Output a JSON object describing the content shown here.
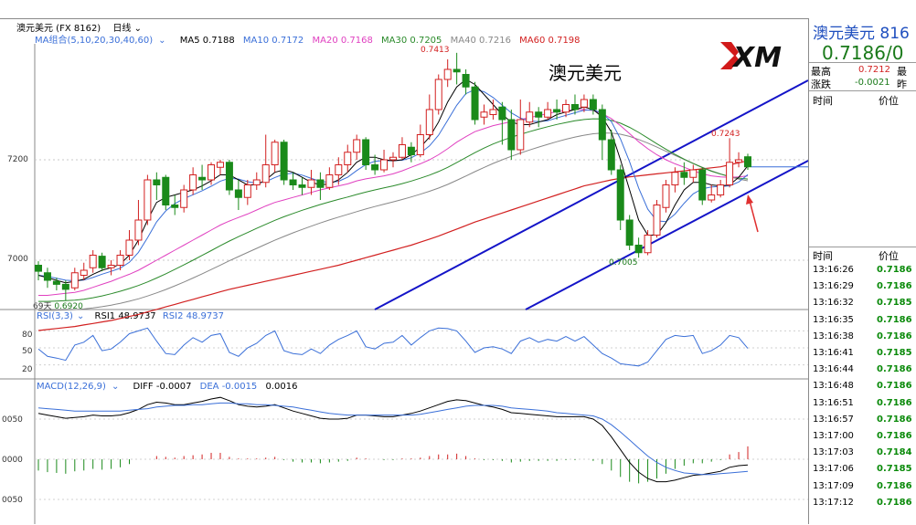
{
  "toolbar": {
    "symbol_label": "澳元美元 (FX 8162)",
    "period_label": "日线"
  },
  "ma_legend": {
    "group": "MA组合(5,10,20,30,40,60)",
    "items": [
      {
        "label": "MA5 0.7188",
        "color": "#000000"
      },
      {
        "label": "MA10 0.7172",
        "color": "#3a6fd8"
      },
      {
        "label": "MA20 0.7168",
        "color": "#e040c0"
      },
      {
        "label": "MA30 0.7205",
        "color": "#2a8a2a"
      },
      {
        "label": "MA40 0.7216",
        "color": "#888888"
      },
      {
        "label": "MA60 0.7198",
        "color": "#d22020"
      }
    ]
  },
  "chart_title": "澳元美元",
  "logo_text": "XM",
  "annotations": {
    "high": "0.7413",
    "low": "0.7005",
    "recent_high": "0.7243",
    "left_low": "0.6920",
    "left_low_prefix": "69天"
  },
  "price_axis": [
    "7200",
    "7000"
  ],
  "rsi_legend": {
    "group": "RSI(3,3)",
    "rsi1": "RSI1 48.9737",
    "rsi2": "RSI2 48.9737",
    "ticks": [
      "80",
      "50",
      "20"
    ]
  },
  "macd_legend": {
    "group": "MACD(12,26,9)",
    "diff": "DIFF -0.0007",
    "dea": "DEA -0.0015",
    "macd": "0.0016",
    "ticks": [
      "0050",
      "0000",
      "0050"
    ]
  },
  "quote": {
    "title": "澳元美元  816",
    "price": "0.7186/0",
    "high_label": "最高",
    "high_value": "0.7212",
    "change_label": "涨跌",
    "change_value": "-0.0021",
    "right_label_1": "最",
    "right_label_2": "昨",
    "col_time": "时间",
    "col_price": "价位",
    "ticks": [
      {
        "time": "13:16:26",
        "price": "0.7186"
      },
      {
        "time": "13:16:29",
        "price": "0.7186"
      },
      {
        "time": "13:16:32",
        "price": "0.7185"
      },
      {
        "time": "13:16:35",
        "price": "0.7186"
      },
      {
        "time": "13:16:38",
        "price": "0.7186"
      },
      {
        "time": "13:16:41",
        "price": "0.7185"
      },
      {
        "time": "13:16:44",
        "price": "0.7186"
      },
      {
        "time": "13:16:48",
        "price": "0.7186"
      },
      {
        "time": "13:16:51",
        "price": "0.7186"
      },
      {
        "time": "13:16:57",
        "price": "0.7186"
      },
      {
        "time": "13:17:00",
        "price": "0.7186"
      },
      {
        "time": "13:17:03",
        "price": "0.7184"
      },
      {
        "time": "13:17:06",
        "price": "0.7185"
      },
      {
        "time": "13:17:09",
        "price": "0.7186"
      },
      {
        "time": "13:17:12",
        "price": "0.7186"
      }
    ]
  },
  "chart_data": {
    "type": "candlestick",
    "title": "澳元美元",
    "ylim": [
      0.692,
      0.7413
    ],
    "candles": [
      {
        "o": 0.699,
        "c": 0.6978,
        "h": 0.6998,
        "l": 0.696
      },
      {
        "o": 0.6975,
        "c": 0.696,
        "h": 0.6985,
        "l": 0.6945
      },
      {
        "o": 0.6958,
        "c": 0.6952,
        "h": 0.6965,
        "l": 0.694
      },
      {
        "o": 0.6952,
        "c": 0.6942,
        "h": 0.696,
        "l": 0.692
      },
      {
        "o": 0.6945,
        "c": 0.6975,
        "h": 0.6985,
        "l": 0.694
      },
      {
        "o": 0.697,
        "c": 0.698,
        "h": 0.6995,
        "l": 0.696
      },
      {
        "o": 0.6985,
        "c": 0.701,
        "h": 0.702,
        "l": 0.6975
      },
      {
        "o": 0.7008,
        "c": 0.6985,
        "h": 0.7015,
        "l": 0.6978
      },
      {
        "o": 0.6985,
        "c": 0.699,
        "h": 0.7,
        "l": 0.697
      },
      {
        "o": 0.699,
        "c": 0.701,
        "h": 0.702,
        "l": 0.698
      },
      {
        "o": 0.701,
        "c": 0.704,
        "h": 0.706,
        "l": 0.7
      },
      {
        "o": 0.704,
        "c": 0.708,
        "h": 0.712,
        "l": 0.703
      },
      {
        "o": 0.708,
        "c": 0.716,
        "h": 0.717,
        "l": 0.707
      },
      {
        "o": 0.716,
        "c": 0.715,
        "h": 0.7175,
        "l": 0.712
      },
      {
        "o": 0.7165,
        "c": 0.711,
        "h": 0.717,
        "l": 0.71
      },
      {
        "o": 0.711,
        "c": 0.7105,
        "h": 0.713,
        "l": 0.709
      },
      {
        "o": 0.7105,
        "c": 0.714,
        "h": 0.715,
        "l": 0.7095
      },
      {
        "o": 0.714,
        "c": 0.717,
        "h": 0.7185,
        "l": 0.713
      },
      {
        "o": 0.7165,
        "c": 0.716,
        "h": 0.719,
        "l": 0.714
      },
      {
        "o": 0.716,
        "c": 0.719,
        "h": 0.7195,
        "l": 0.715
      },
      {
        "o": 0.7185,
        "c": 0.7195,
        "h": 0.72,
        "l": 0.717
      },
      {
        "o": 0.7195,
        "c": 0.714,
        "h": 0.72,
        "l": 0.713
      },
      {
        "o": 0.714,
        "c": 0.7125,
        "h": 0.716,
        "l": 0.71
      },
      {
        "o": 0.7125,
        "c": 0.715,
        "h": 0.716,
        "l": 0.711
      },
      {
        "o": 0.715,
        "c": 0.716,
        "h": 0.7175,
        "l": 0.714
      },
      {
        "o": 0.7155,
        "c": 0.719,
        "h": 0.725,
        "l": 0.7145
      },
      {
        "o": 0.719,
        "c": 0.7235,
        "h": 0.724,
        "l": 0.7175
      },
      {
        "o": 0.7235,
        "c": 0.716,
        "h": 0.724,
        "l": 0.715
      },
      {
        "o": 0.716,
        "c": 0.715,
        "h": 0.7175,
        "l": 0.714
      },
      {
        "o": 0.715,
        "c": 0.7145,
        "h": 0.7165,
        "l": 0.713
      },
      {
        "o": 0.7145,
        "c": 0.716,
        "h": 0.718,
        "l": 0.713
      },
      {
        "o": 0.716,
        "c": 0.7145,
        "h": 0.7175,
        "l": 0.712
      },
      {
        "o": 0.7145,
        "c": 0.717,
        "h": 0.7185,
        "l": 0.714
      },
      {
        "o": 0.717,
        "c": 0.719,
        "h": 0.7205,
        "l": 0.715
      },
      {
        "o": 0.719,
        "c": 0.7215,
        "h": 0.723,
        "l": 0.7175
      },
      {
        "o": 0.7215,
        "c": 0.724,
        "h": 0.725,
        "l": 0.72
      },
      {
        "o": 0.724,
        "c": 0.719,
        "h": 0.7245,
        "l": 0.718
      },
      {
        "o": 0.719,
        "c": 0.718,
        "h": 0.721,
        "l": 0.717
      },
      {
        "o": 0.718,
        "c": 0.72,
        "h": 0.722,
        "l": 0.7175
      },
      {
        "o": 0.72,
        "c": 0.7205,
        "h": 0.7215,
        "l": 0.7185
      },
      {
        "o": 0.7205,
        "c": 0.723,
        "h": 0.7245,
        "l": 0.72
      },
      {
        "o": 0.7225,
        "c": 0.721,
        "h": 0.7235,
        "l": 0.7195
      },
      {
        "o": 0.721,
        "c": 0.725,
        "h": 0.727,
        "l": 0.7205
      },
      {
        "o": 0.725,
        "c": 0.73,
        "h": 0.733,
        "l": 0.724
      },
      {
        "o": 0.73,
        "c": 0.736,
        "h": 0.737,
        "l": 0.729
      },
      {
        "o": 0.736,
        "c": 0.738,
        "h": 0.74,
        "l": 0.7345
      },
      {
        "o": 0.738,
        "c": 0.7375,
        "h": 0.7413,
        "l": 0.735
      },
      {
        "o": 0.737,
        "c": 0.7345,
        "h": 0.738,
        "l": 0.733
      },
      {
        "o": 0.7345,
        "c": 0.728,
        "h": 0.7355,
        "l": 0.727
      },
      {
        "o": 0.7285,
        "c": 0.7295,
        "h": 0.731,
        "l": 0.727
      },
      {
        "o": 0.729,
        "c": 0.73,
        "h": 0.732,
        "l": 0.728
      },
      {
        "o": 0.7305,
        "c": 0.728,
        "h": 0.7315,
        "l": 0.723
      },
      {
        "o": 0.728,
        "c": 0.722,
        "h": 0.73,
        "l": 0.72
      },
      {
        "o": 0.722,
        "c": 0.728,
        "h": 0.732,
        "l": 0.721
      },
      {
        "o": 0.7275,
        "c": 0.7295,
        "h": 0.7315,
        "l": 0.7265
      },
      {
        "o": 0.7295,
        "c": 0.7285,
        "h": 0.7305,
        "l": 0.7265
      },
      {
        "o": 0.7285,
        "c": 0.73,
        "h": 0.7315,
        "l": 0.728
      },
      {
        "o": 0.73,
        "c": 0.7295,
        "h": 0.732,
        "l": 0.728
      },
      {
        "o": 0.7295,
        "c": 0.731,
        "h": 0.732,
        "l": 0.7285
      },
      {
        "o": 0.731,
        "c": 0.73,
        "h": 0.733,
        "l": 0.729
      },
      {
        "o": 0.7305,
        "c": 0.732,
        "h": 0.733,
        "l": 0.7295
      },
      {
        "o": 0.732,
        "c": 0.73,
        "h": 0.733,
        "l": 0.729
      },
      {
        "o": 0.73,
        "c": 0.724,
        "h": 0.731,
        "l": 0.72
      },
      {
        "o": 0.724,
        "c": 0.718,
        "h": 0.726,
        "l": 0.717
      },
      {
        "o": 0.718,
        "c": 0.708,
        "h": 0.719,
        "l": 0.706
      },
      {
        "o": 0.708,
        "c": 0.703,
        "h": 0.709,
        "l": 0.702
      },
      {
        "o": 0.703,
        "c": 0.7015,
        "h": 0.7045,
        "l": 0.7005
      },
      {
        "o": 0.7015,
        "c": 0.705,
        "h": 0.706,
        "l": 0.701
      },
      {
        "o": 0.705,
        "c": 0.711,
        "h": 0.712,
        "l": 0.7045
      },
      {
        "o": 0.7105,
        "c": 0.715,
        "h": 0.716,
        "l": 0.7095
      },
      {
        "o": 0.715,
        "c": 0.7175,
        "h": 0.7185,
        "l": 0.7135
      },
      {
        "o": 0.7175,
        "c": 0.7165,
        "h": 0.7195,
        "l": 0.715
      },
      {
        "o": 0.7165,
        "c": 0.718,
        "h": 0.719,
        "l": 0.7155
      },
      {
        "o": 0.718,
        "c": 0.712,
        "h": 0.7185,
        "l": 0.711
      },
      {
        "o": 0.712,
        "c": 0.713,
        "h": 0.715,
        "l": 0.7115
      },
      {
        "o": 0.713,
        "c": 0.715,
        "h": 0.716,
        "l": 0.7125
      },
      {
        "o": 0.715,
        "c": 0.7195,
        "h": 0.7243,
        "l": 0.7145
      },
      {
        "o": 0.7195,
        "c": 0.72,
        "h": 0.7215,
        "l": 0.7185
      },
      {
        "o": 0.7206,
        "c": 0.7186,
        "h": 0.7212,
        "l": 0.718
      }
    ],
    "ma5": [
      0.697,
      0.6965,
      0.696,
      0.6955,
      0.6958,
      0.6962,
      0.6972,
      0.698,
      0.6985,
      0.6992,
      0.701,
      0.704,
      0.708,
      0.7115,
      0.7125,
      0.713,
      0.7135,
      0.714,
      0.7148,
      0.7158,
      0.717,
      0.717,
      0.716,
      0.715,
      0.715,
      0.716,
      0.7175,
      0.718,
      0.7175,
      0.7165,
      0.7155,
      0.715,
      0.7152,
      0.716,
      0.7175,
      0.7195,
      0.7205,
      0.7205,
      0.72,
      0.7198,
      0.72,
      0.721,
      0.7225,
      0.7245,
      0.7275,
      0.7315,
      0.7345,
      0.736,
      0.735,
      0.733,
      0.731,
      0.729,
      0.7275,
      0.727,
      0.727,
      0.7275,
      0.728,
      0.729,
      0.7295,
      0.73,
      0.7305,
      0.73,
      0.7285,
      0.7255,
      0.72,
      0.714,
      0.708,
      0.705,
      0.705,
      0.7075,
      0.711,
      0.714,
      0.7155,
      0.7155,
      0.715,
      0.7148,
      0.715,
      0.7165,
      0.7188
    ],
    "ma20": [
      0.693,
      0.693,
      0.6932,
      0.6934,
      0.6936,
      0.694,
      0.6946,
      0.6952,
      0.6958,
      0.6965,
      0.6972,
      0.698,
      0.699,
      0.7,
      0.701,
      0.702,
      0.703,
      0.704,
      0.705,
      0.706,
      0.707,
      0.7078,
      0.7085,
      0.7092,
      0.71,
      0.7108,
      0.7115,
      0.712,
      0.7125,
      0.713,
      0.7135,
      0.714,
      0.7144,
      0.7148,
      0.7152,
      0.7158,
      0.7162,
      0.7165,
      0.7168,
      0.7172,
      0.7178,
      0.7185,
      0.7192,
      0.72,
      0.721,
      0.7222,
      0.7235,
      0.7246,
      0.7256,
      0.7262,
      0.7268,
      0.7272,
      0.7276,
      0.728,
      0.7284,
      0.7288,
      0.7292,
      0.7296,
      0.7298,
      0.73,
      0.73,
      0.7298,
      0.7292,
      0.7282,
      0.7268,
      0.7252,
      0.7236,
      0.7222,
      0.721,
      0.72,
      0.7192,
      0.7185,
      0.7178,
      0.7172,
      0.7168,
      0.7166,
      0.7165,
      0.7166,
      0.7168
    ],
    "ma60": [
      0.686,
      0.6862,
      0.6864,
      0.6866,
      0.6868,
      0.6871,
      0.6874,
      0.6877,
      0.688,
      0.6884,
      0.6888,
      0.6892,
      0.6897,
      0.6902,
      0.6907,
      0.6912,
      0.6917,
      0.6922,
      0.6927,
      0.6932,
      0.6937,
      0.6942,
      0.6946,
      0.695,
      0.6954,
      0.6958,
      0.6962,
      0.6966,
      0.697,
      0.6974,
      0.6978,
      0.6982,
      0.6986,
      0.699,
      0.6995,
      0.7,
      0.7005,
      0.701,
      0.7015,
      0.702,
      0.7025,
      0.703,
      0.7036,
      0.7042,
      0.7048,
      0.7055,
      0.7062,
      0.7069,
      0.7076,
      0.7082,
      0.7088,
      0.7094,
      0.71,
      0.7106,
      0.7112,
      0.7118,
      0.7124,
      0.713,
      0.7136,
      0.7142,
      0.7148,
      0.7152,
      0.7156,
      0.716,
      0.7163,
      0.7166,
      0.7168,
      0.717,
      0.7172,
      0.7174,
      0.7176,
      0.7178,
      0.718,
      0.7182,
      0.7184,
      0.7186,
      0.719,
      0.7194,
      0.7198
    ],
    "rsi": [
      48,
      35,
      32,
      28,
      55,
      60,
      72,
      45,
      48,
      60,
      75,
      80,
      85,
      62,
      40,
      38,
      55,
      68,
      60,
      72,
      75,
      42,
      35,
      50,
      58,
      72,
      80,
      45,
      40,
      38,
      48,
      40,
      55,
      65,
      72,
      80,
      52,
      48,
      58,
      60,
      72,
      55,
      68,
      80,
      85,
      84,
      80,
      62,
      42,
      50,
      52,
      48,
      40,
      62,
      68,
      60,
      65,
      62,
      70,
      62,
      70,
      55,
      40,
      32,
      22,
      20,
      18,
      25,
      45,
      65,
      72,
      70,
      72,
      40,
      45,
      55,
      72,
      68,
      49
    ],
    "macd_hist": [
      -0.0014,
      -0.0016,
      -0.0017,
      -0.0018,
      -0.0015,
      -0.0014,
      -0.0012,
      -0.0013,
      -0.0012,
      -0.001,
      -0.0006,
      0,
      0,
      0.0004,
      0.0003,
      0.0002,
      0.0004,
      0.0005,
      0.0006,
      0.0008,
      0.0008,
      0.0003,
      0.0001,
      0.0001,
      0.0001,
      0.0002,
      0.0003,
      -0.0001,
      -0.0003,
      -0.0004,
      -0.0004,
      -0.0005,
      -0.0004,
      -0.0003,
      -0.0002,
      0.0002,
      0.0001,
      0.0,
      -0.0001,
      -0.0001,
      0.0001,
      0.0001,
      0.0002,
      0.0004,
      0.0006,
      0.0006,
      0.0007,
      0.0004,
      0.0001,
      -0.0001,
      -0.0001,
      -0.0002,
      -0.0004,
      -0.0003,
      -0.0002,
      -0.0002,
      -0.0002,
      -0.0002,
      -0.0001,
      -0.0001,
      0.0,
      -0.0002,
      -0.0006,
      -0.0014,
      -0.0022,
      -0.0028,
      -0.003,
      -0.0028,
      -0.0024,
      -0.0018,
      -0.0012,
      -0.0008,
      -0.0005,
      -0.0005,
      -0.0003,
      -0.0001,
      0.0006,
      0.0009,
      0.0016
    ],
    "diff": [
      0.0057,
      0.0055,
      0.0053,
      0.0051,
      0.0052,
      0.0053,
      0.0055,
      0.0054,
      0.0054,
      0.0055,
      0.0058,
      0.0062,
      0.0068,
      0.0071,
      0.007,
      0.0068,
      0.0068,
      0.007,
      0.0072,
      0.0075,
      0.0077,
      0.0073,
      0.0068,
      0.0066,
      0.0065,
      0.0066,
      0.0068,
      0.0064,
      0.006,
      0.0057,
      0.0054,
      0.0051,
      0.005,
      0.005,
      0.0051,
      0.0055,
      0.0055,
      0.0054,
      0.0053,
      0.0053,
      0.0055,
      0.0057,
      0.006,
      0.0064,
      0.0068,
      0.0072,
      0.0074,
      0.0073,
      0.007,
      0.0067,
      0.0065,
      0.0062,
      0.0058,
      0.0057,
      0.0056,
      0.0055,
      0.0054,
      0.0053,
      0.0053,
      0.0053,
      0.0053,
      0.005,
      0.0042,
      0.0028,
      0.0012,
      -0.0004,
      -0.0016,
      -0.0024,
      -0.0028,
      -0.0028,
      -0.0026,
      -0.0023,
      -0.002,
      -0.0019,
      -0.0017,
      -0.0015,
      -0.001,
      -0.0008,
      -0.0007
    ],
    "dea": [
      0.0064,
      0.0063,
      0.0062,
      0.0061,
      0.006,
      0.006,
      0.006,
      0.006,
      0.006,
      0.006,
      0.0061,
      0.0062,
      0.0063,
      0.0065,
      0.0066,
      0.0067,
      0.0067,
      0.0068,
      0.0068,
      0.0069,
      0.007,
      0.007,
      0.0069,
      0.0069,
      0.0068,
      0.0068,
      0.0067,
      0.0066,
      0.0065,
      0.0063,
      0.0061,
      0.0059,
      0.0057,
      0.0056,
      0.0055,
      0.0055,
      0.0055,
      0.0055,
      0.0055,
      0.0055,
      0.0055,
      0.0055,
      0.0056,
      0.0058,
      0.006,
      0.0062,
      0.0064,
      0.0066,
      0.0067,
      0.0067,
      0.0067,
      0.0066,
      0.0064,
      0.0063,
      0.0062,
      0.0061,
      0.006,
      0.0058,
      0.0057,
      0.0056,
      0.0055,
      0.0054,
      0.005,
      0.0043,
      0.0034,
      0.0024,
      0.0014,
      0.0004,
      -0.0004,
      -0.001,
      -0.0014,
      -0.0017,
      -0.0018,
      -0.0019,
      -0.0019,
      -0.0018,
      -0.0017,
      -0.0016,
      -0.0015
    ]
  }
}
